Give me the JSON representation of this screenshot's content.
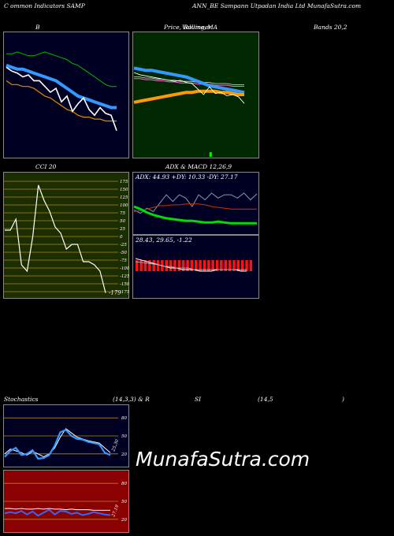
{
  "header": {
    "part1": "C",
    "part2": "ommon  Indicators SAMP",
    "part3": "ANN_BE Sampann  Utpadan  India  Ltd MunafaSutra.com"
  },
  "titles": {
    "bollinger_left": "B",
    "bollinger_mid1": "Price,",
    "bollinger_mid2": "Volume,",
    "bollinger_mid3": "Bollinger",
    "bollinger_mid4": "MA",
    "bollinger_right": "Bands 20,2",
    "cci": "CCI 20",
    "adx_macd": "ADX  & MACD 12,26,9",
    "stoch_left": "Stochastics",
    "stoch_mid": "(14,3,3) & R",
    "rsi": "SI",
    "rsi_params": "(14,5",
    "rsi_close": ")"
  },
  "watermark": "MunafaSutra.com",
  "colors": {
    "bollinger_bg": "#000022",
    "price_bg": "#002800",
    "cci_bg": "#1a2e00",
    "adx_bg": "#000022",
    "stoch_bg": "#000022",
    "rsi_bg": "#8b0000",
    "blue": "#3399ff",
    "green": "#00cc00",
    "orange": "#ff9900"
  },
  "chart_data": [
    {
      "type": "line",
      "panel": "bollinger",
      "series": [
        {
          "values": [
            80,
            80,
            81,
            80,
            79,
            79,
            80,
            81,
            80,
            79,
            78,
            77,
            75,
            74,
            72,
            70,
            68,
            66,
            64,
            63,
            63
          ]
        },
        {
          "values": [
            74,
            73,
            72,
            72,
            71,
            70,
            69,
            68,
            67,
            66,
            64,
            62,
            60,
            58,
            57,
            56,
            55,
            54,
            53,
            52,
            52
          ]
        },
        {
          "values": [
            66,
            64,
            64,
            63,
            63,
            62,
            60,
            58,
            57,
            55,
            53,
            51,
            50,
            48,
            47,
            47,
            46,
            46,
            45,
            45,
            45
          ]
        },
        {
          "values": [
            73,
            71,
            70,
            68,
            69,
            66,
            66,
            63,
            60,
            62,
            55,
            58,
            50,
            54,
            57,
            51,
            48,
            52,
            49,
            48,
            40
          ]
        }
      ],
      "ylim": [
        30,
        90
      ]
    },
    {
      "type": "line",
      "panel": "price_ma",
      "series": [
        {
          "values": [
            74,
            73,
            72,
            72,
            71,
            70,
            69,
            68,
            67,
            66,
            64,
            62,
            60,
            58,
            57,
            56,
            55,
            54,
            53,
            52
          ]
        },
        {
          "values": [
            43,
            44,
            45,
            46,
            47,
            48,
            49,
            50,
            51,
            52,
            52,
            53,
            53,
            53,
            53,
            52,
            52,
            51,
            50,
            50
          ]
        },
        {
          "values": [
            66,
            66,
            65,
            65,
            64,
            64,
            63,
            63,
            62,
            62,
            62,
            61,
            61,
            61,
            60,
            60,
            60,
            59,
            59,
            59
          ]
        },
        {
          "values": [
            70,
            68,
            67,
            66,
            65,
            64,
            63,
            62,
            63,
            61,
            60,
            55,
            50,
            57,
            51,
            52,
            49,
            50,
            48,
            42
          ]
        }
      ],
      "volume": [
        {
          "index": 13,
          "value": 1
        }
      ],
      "ylim": [
        0,
        100
      ]
    },
    {
      "type": "line",
      "panel": "cci",
      "yticks": [
        175,
        150,
        125,
        100,
        75,
        50,
        25,
        0,
        -25,
        -50,
        -75,
        -100,
        -125,
        -150,
        -175
      ],
      "values": [
        20,
        20,
        55,
        -90,
        -110,
        0,
        163,
        115,
        80,
        30,
        10,
        -40,
        -25,
        -25,
        -80,
        -80,
        -90,
        -110,
        -179
      ],
      "last_label": "-179",
      "ylim": [
        -175,
        175
      ]
    },
    {
      "type": "line",
      "panel": "adx",
      "label": "ADX: 44.93  +DY: 10.33  -DY: 27.17",
      "series": [
        {
          "values": [
            30,
            27,
            23,
            20,
            18,
            16,
            15,
            14,
            13,
            13,
            12,
            11,
            11,
            12,
            11,
            10,
            10,
            10,
            10,
            10
          ]
        },
        {
          "values": [
            24,
            25,
            27,
            29,
            31,
            31,
            32,
            32,
            33,
            33,
            33,
            32,
            30,
            29,
            28,
            27,
            27,
            27,
            27,
            27
          ]
        },
        {
          "values": [
            26,
            22,
            28,
            24,
            34,
            44,
            36,
            44,
            40,
            30,
            44,
            38,
            46,
            40,
            44,
            44,
            40,
            46,
            38,
            45
          ]
        }
      ],
      "ylim": [
        0,
        60
      ]
    },
    {
      "type": "bar",
      "panel": "macd",
      "label": "28.43,  29.65,  -1.22",
      "histogram": [
        -1,
        -1,
        -1,
        -1,
        -1,
        -1,
        -1,
        -1,
        -1,
        -1,
        -1,
        -1,
        -1,
        -1,
        -1,
        -1,
        -1,
        -1,
        -1,
        -1,
        -1,
        -1,
        -1,
        -1,
        -1,
        -1,
        -1,
        -1
      ],
      "series": [
        {
          "values": [
            3,
            2,
            1,
            0,
            -1,
            -2,
            -3,
            -3,
            -4,
            -4,
            -4,
            -5,
            -5,
            -5,
            -4,
            -4,
            -4,
            -4,
            -5,
            -5
          ]
        },
        {
          "values": [
            1,
            0.5,
            0,
            -0.5,
            -1,
            -2,
            -2,
            -3,
            -3,
            -3,
            -4,
            -4,
            -4,
            -4,
            -4,
            -4,
            -4,
            -4,
            -4,
            -4
          ]
        }
      ],
      "ylim": [
        -20,
        12
      ]
    },
    {
      "type": "line",
      "panel": "stochastics",
      "yticks": [
        80,
        50,
        20
      ],
      "side_label": "25,30",
      "series": [
        {
          "values": [
            20,
            28,
            25,
            22,
            18,
            24,
            20,
            15,
            20,
            30,
            48,
            62,
            55,
            48,
            45,
            42,
            40,
            38,
            30,
            22
          ]
        },
        {
          "values": [
            15,
            25,
            30,
            18,
            20,
            26,
            12,
            13,
            18,
            34,
            56,
            60,
            50,
            45,
            44,
            40,
            38,
            36,
            22,
            18
          ]
        }
      ],
      "ylim": [
        0,
        100
      ]
    },
    {
      "type": "line",
      "panel": "rsi",
      "yticks": [
        80,
        50,
        20
      ],
      "side_label": "27.19",
      "series": [
        {
          "values": [
            38,
            38,
            37,
            38,
            37,
            37,
            38,
            37,
            38,
            37,
            37,
            36,
            37,
            36,
            36,
            36,
            35,
            35,
            35,
            35
          ]
        },
        {
          "values": [
            30,
            32,
            30,
            34,
            28,
            33,
            26,
            31,
            36,
            28,
            34,
            33,
            29,
            31,
            27,
            29,
            32,
            30,
            28,
            27
          ]
        }
      ],
      "ylim": [
        0,
        100
      ]
    }
  ]
}
